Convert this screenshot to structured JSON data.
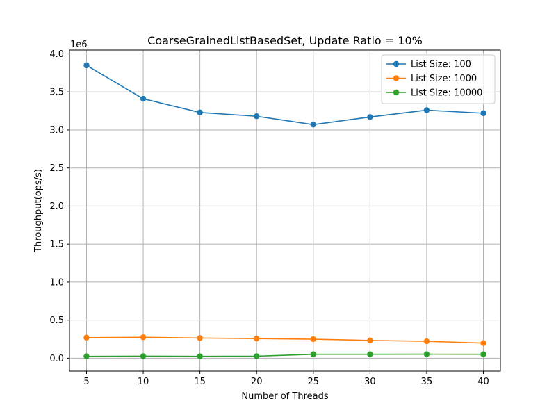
{
  "chart_data": {
    "type": "line",
    "title": "CoarseGrainedListBasedSet, Update Ratio = 10%",
    "xlabel": "Number of Threads",
    "ylabel": "Throughput(ops/s)",
    "y_offset_label": "1e6",
    "xlim": [
      3.5,
      41.5
    ],
    "ylim": [
      -0.17,
      4.05
    ],
    "x_ticks": [
      5,
      10,
      15,
      20,
      25,
      30,
      35,
      40
    ],
    "x_tick_labels": [
      "5",
      "10",
      "15",
      "20",
      "25",
      "30",
      "35",
      "40"
    ],
    "y_ticks": [
      0.0,
      0.5,
      1.0,
      1.5,
      2.0,
      2.5,
      3.0,
      3.5,
      4.0
    ],
    "y_tick_labels": [
      "0.0",
      "0.5",
      "1.0",
      "1.5",
      "2.0",
      "2.5",
      "3.0",
      "3.5",
      "4.0"
    ],
    "grid": true,
    "legend_position": "top-right",
    "x": [
      5,
      10,
      15,
      20,
      25,
      30,
      35,
      40
    ],
    "series": [
      {
        "name": "List Size: 100",
        "color": "#1f77b4",
        "values": [
          3.85,
          3.41,
          3.23,
          3.18,
          3.07,
          3.17,
          3.26,
          3.22
        ]
      },
      {
        "name": "List Size: 1000",
        "color": "#ff7f0e",
        "values": [
          0.27,
          0.275,
          0.265,
          0.258,
          0.25,
          0.233,
          0.222,
          0.198
        ]
      },
      {
        "name": "List Size: 10000",
        "color": "#2ca02c",
        "values": [
          0.025,
          0.027,
          0.025,
          0.027,
          0.052,
          0.052,
          0.053,
          0.052
        ]
      }
    ]
  }
}
